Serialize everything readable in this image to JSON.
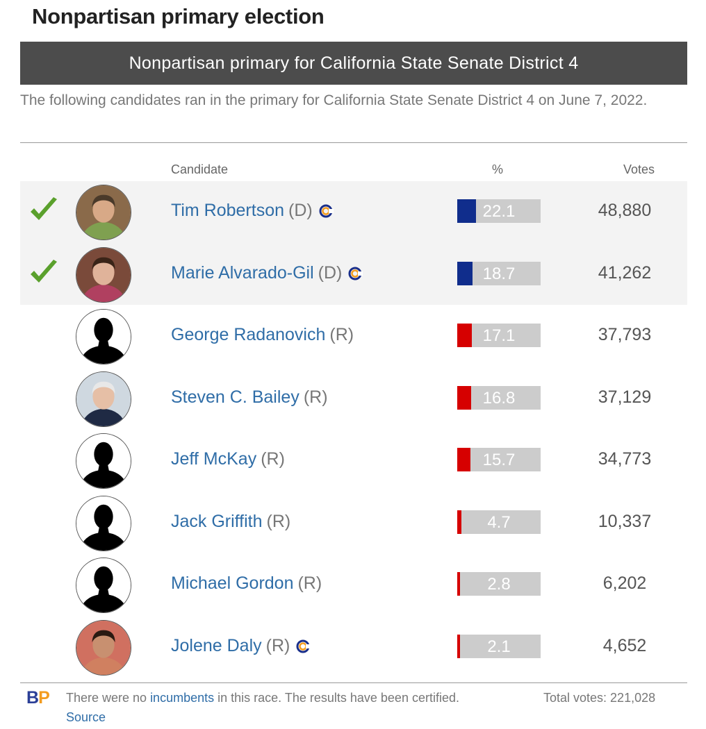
{
  "page_title": "Nonpartisan primary election",
  "banner": "Nonpartisan primary for California State Senate District 4",
  "intro": "The following candidates ran in the primary for California State Senate District 4 on June 7, 2022.",
  "columns": {
    "candidate": "Candidate",
    "pct": "%",
    "votes": "Votes"
  },
  "colors": {
    "democrat": "#102d8c",
    "republican": "#d60000",
    "bar_track": "#cccccc",
    "winner_check": "#5aa02c",
    "link": "#2f6da7"
  },
  "candidates": [
    {
      "name": "Tim Robertson",
      "party": "(D)",
      "pct": "22.1",
      "votes": "48,880",
      "winner": true,
      "badge": "ballotpedia-candidate-connection-icon",
      "photo": "candidate-photo",
      "party_color": "democrat"
    },
    {
      "name": "Marie Alvarado-Gil",
      "party": "(D)",
      "pct": "18.7",
      "votes": "41,262",
      "winner": true,
      "badge": "ballotpedia-candidate-connection-icon",
      "photo": "candidate-photo",
      "party_color": "democrat"
    },
    {
      "name": "George Radanovich",
      "party": "(R)",
      "pct": "17.1",
      "votes": "37,793",
      "winner": false,
      "badge": "",
      "photo": "silhouette-placeholder",
      "party_color": "republican"
    },
    {
      "name": "Steven C. Bailey",
      "party": "(R)",
      "pct": "16.8",
      "votes": "37,129",
      "winner": false,
      "badge": "",
      "photo": "candidate-photo",
      "party_color": "republican"
    },
    {
      "name": "Jeff McKay",
      "party": "(R)",
      "pct": "15.7",
      "votes": "34,773",
      "winner": false,
      "badge": "",
      "photo": "silhouette-placeholder",
      "party_color": "republican"
    },
    {
      "name": "Jack Griffith",
      "party": "(R)",
      "pct": "4.7",
      "votes": "10,337",
      "winner": false,
      "badge": "",
      "photo": "silhouette-placeholder",
      "party_color": "republican"
    },
    {
      "name": "Michael Gordon",
      "party": "(R)",
      "pct": "2.8",
      "votes": "6,202",
      "winner": false,
      "badge": "",
      "photo": "silhouette-placeholder",
      "party_color": "republican"
    },
    {
      "name": "Jolene Daly",
      "party": "(R)",
      "pct": "2.1",
      "votes": "4,652",
      "winner": false,
      "badge": "ballotpedia-candidate-connection-icon",
      "photo": "candidate-photo",
      "party_color": "republican"
    }
  ],
  "footer": {
    "logo_b": "B",
    "logo_p": "P",
    "note_before": "There were no ",
    "note_link": "incumbents",
    "note_after": " in this race. The results have been certified. ",
    "source_link": "Source",
    "total": "Total votes: 221,028"
  }
}
